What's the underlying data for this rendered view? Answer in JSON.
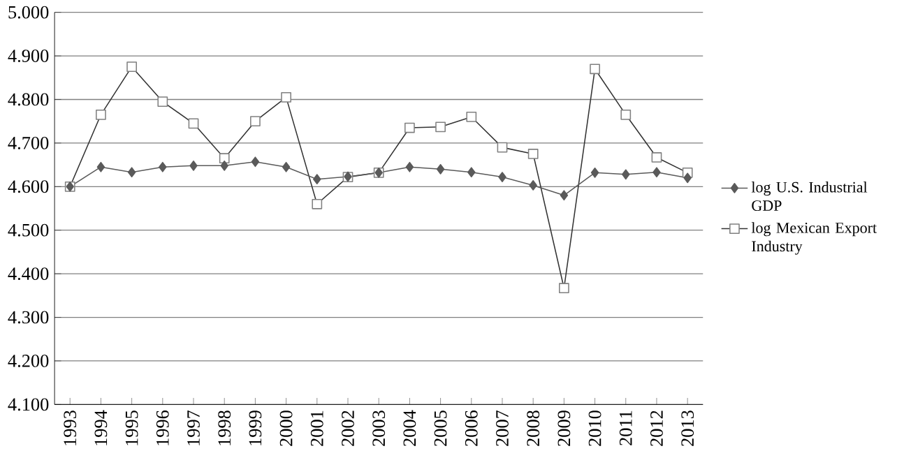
{
  "chart_data": {
    "type": "line",
    "categories": [
      "1993",
      "1994",
      "1995",
      "1996",
      "1997",
      "1998",
      "1999",
      "2000",
      "2001",
      "2002",
      "2003",
      "2004",
      "2005",
      "2006",
      "2007",
      "2008",
      "2009",
      "2010",
      "2011",
      "2012",
      "2013"
    ],
    "series": [
      {
        "name": "log U.S. Industrial GDP",
        "color": "#5a5a5a",
        "marker": "diamond",
        "values": [
          4.6,
          4.645,
          4.633,
          4.645,
          4.648,
          4.648,
          4.657,
          4.645,
          4.617,
          4.623,
          4.632,
          4.645,
          4.64,
          4.633,
          4.622,
          4.603,
          4.58,
          4.632,
          4.628,
          4.633,
          4.62
        ]
      },
      {
        "name": "log Mexican Export Industry",
        "color": "#333333",
        "marker": "square",
        "values": [
          4.6,
          4.765,
          4.875,
          4.795,
          4.745,
          4.665,
          4.75,
          4.805,
          4.56,
          4.622,
          4.632,
          4.735,
          4.737,
          4.76,
          4.69,
          4.675,
          4.367,
          4.87,
          4.765,
          4.667,
          4.632
        ]
      }
    ],
    "ylim": [
      4.1,
      5.0
    ],
    "yticks": [
      {
        "value": 4.1,
        "label": "4.100"
      },
      {
        "value": 4.2,
        "label": "4.200"
      },
      {
        "value": 4.3,
        "label": "4.300"
      },
      {
        "value": 4.4,
        "label": "4.400"
      },
      {
        "value": 4.5,
        "label": "4.500"
      },
      {
        "value": 4.6,
        "label": "4.600"
      },
      {
        "value": 4.7,
        "label": "4.700"
      },
      {
        "value": 4.8,
        "label": "4.800"
      },
      {
        "value": 4.9,
        "label": "4.900"
      },
      {
        "value": 5.0,
        "label": "5.000"
      }
    ],
    "grid": "y",
    "legend": "right",
    "line_style": "solid"
  }
}
